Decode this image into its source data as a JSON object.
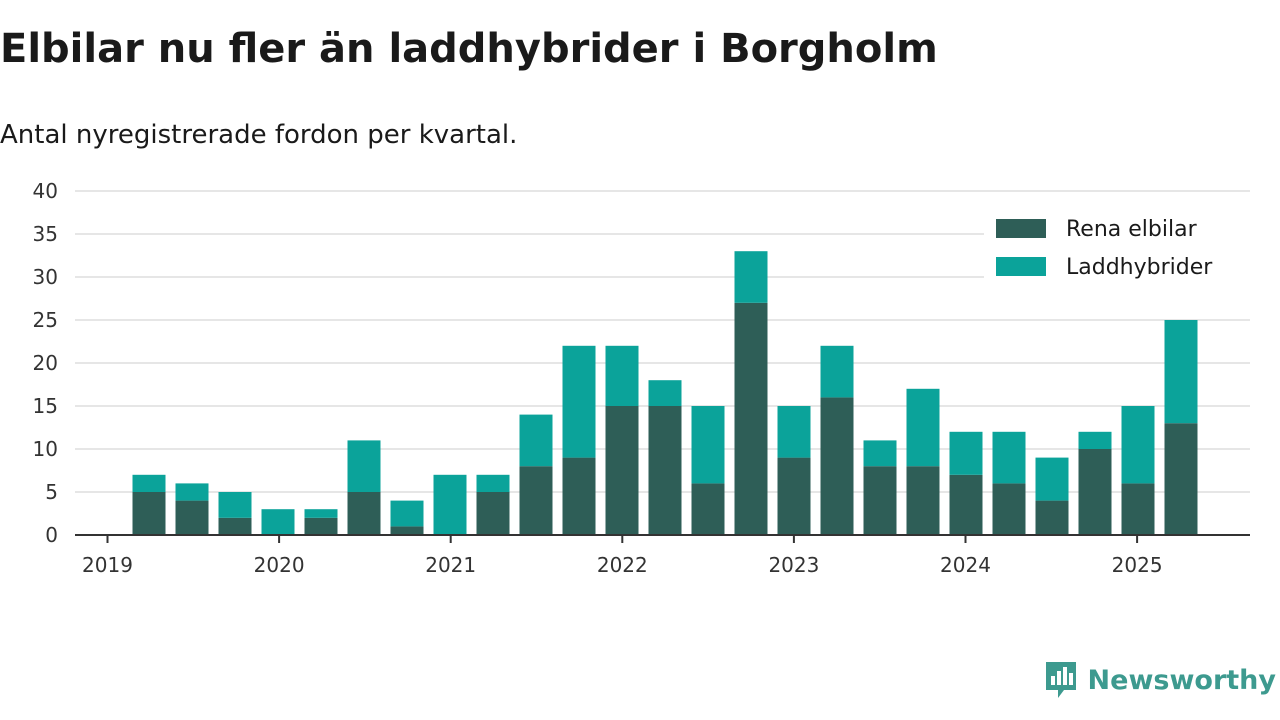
{
  "header": {
    "title": "Elbilar nu fler än laddhybrider i Borgholm",
    "subtitle": "Antal nyregistrerade fordon per kvartal."
  },
  "brand": {
    "name": "Newsworthy",
    "icon": "newsworthy-logo-icon",
    "color": "#3d9a8f"
  },
  "colors": {
    "elbilar": "#2e5e57",
    "laddhybrider": "#0ba39a",
    "grid": "#dddddd",
    "axis": "#333333"
  },
  "chart_data": {
    "type": "bar",
    "stacked": true,
    "title": "Elbilar nu fler än laddhybrider i Borgholm",
    "subtitle": "Antal nyregistrerade fordon per kvartal.",
    "xlabel": "",
    "ylabel": "",
    "categories": [
      "2019 Q2",
      "2019 Q3",
      "2019 Q4",
      "2020 Q1",
      "2020 Q2",
      "2020 Q3",
      "2020 Q4",
      "2021 Q1",
      "2021 Q2",
      "2021 Q3",
      "2021 Q4",
      "2022 Q1",
      "2022 Q2",
      "2022 Q3",
      "2022 Q4",
      "2023 Q1",
      "2023 Q2",
      "2023 Q3",
      "2023 Q4",
      "2024 Q1",
      "2024 Q2",
      "2024 Q3",
      "2024 Q4",
      "2025 Q1",
      "2025 Q2"
    ],
    "x_tick_labels": [
      "2019",
      "2020",
      "2021",
      "2022",
      "2023",
      "2024",
      "2025"
    ],
    "y_ticks": [
      0,
      5,
      10,
      15,
      20,
      25,
      30,
      35,
      40
    ],
    "ylim": [
      0,
      40
    ],
    "grid": true,
    "legend_position": "top-right",
    "series": [
      {
        "name": "Rena elbilar",
        "color": "#2e5e57",
        "values": [
          5,
          4,
          2,
          0,
          2,
          5,
          1,
          0,
          5,
          8,
          9,
          15,
          15,
          6,
          27,
          9,
          16,
          8,
          8,
          7,
          6,
          4,
          10,
          6,
          13
        ]
      },
      {
        "name": "Laddhybrider",
        "color": "#0ba39a",
        "values": [
          2,
          2,
          3,
          3,
          1,
          6,
          3,
          7,
          2,
          6,
          13,
          7,
          3,
          9,
          6,
          6,
          6,
          3,
          9,
          5,
          6,
          5,
          2,
          9,
          12
        ]
      }
    ]
  }
}
